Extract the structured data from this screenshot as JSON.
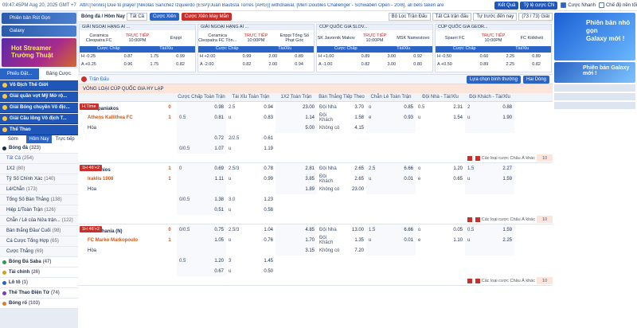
{
  "topbar": {
    "clock": "09:47:45PM Aug 20, 2025 GMT +7",
    "ticker": "Attn:[Tennis] Due to player [Nikolas Sanchez Izquierdo (ESP)/Juan Bautista Torres (ARG)] withdrawal, [Men Doubles Challenger - Schwaben Open - 20/8], all bets taken are",
    "logout": "Kết Quả",
    "odds_type": "Tỷ lệ cược CN",
    "quick_bet": "Cược Nhanh",
    "night_mode": "Chế độ nền tối"
  },
  "sidebar": {
    "banner1": "Phiên bản Rút Gọn",
    "banner2": "Galaxy",
    "promo_line1": "Hot Streamer",
    "promo_line2": "Trường Thuật",
    "tab_fav": "Phiếu Đặt...",
    "tab_bet": "Bảng Cược",
    "leagues": [
      "Vô Địch Thế Giới",
      "Giải quần vợt Mỹ Mở rộ...",
      "Giải Bóng chuyền Vô địc...",
      "Giải Cầu lông Vô địch T..."
    ],
    "sport_header": "Thể Thao",
    "sub_tabs": [
      "Sớm",
      "Hôm Nay",
      "Trực tiếp"
    ],
    "soccer": {
      "label": "Bóng đá",
      "count": "(323)"
    },
    "items": [
      {
        "label": "Tất Cả",
        "count": "(254)"
      },
      {
        "label": "1X2",
        "count": "(80)"
      },
      {
        "label": "Tỷ Số Chính Xác",
        "count": "(140)"
      },
      {
        "label": "Lẻ/Chẵn",
        "count": "(173)"
      },
      {
        "label": "Tổng Số Bàn Thắng",
        "count": "(138)"
      },
      {
        "label": "Hiệp 1/Toàn Trận",
        "count": "(126)"
      },
      {
        "label": "Chẵn / Lẻ của Nửa trận...",
        "count": "(122)"
      },
      {
        "label": "Bàn thắng Đầu/ Cuối",
        "count": "(98)"
      },
      {
        "label": "Cá Cược Tổng Hợp",
        "count": "(65)"
      },
      {
        "label": "Cược Thắng",
        "count": "(69)"
      }
    ],
    "sports": [
      {
        "label": "Bóng Đá Saba",
        "count": "(47)",
        "color": "#2a9d4a"
      },
      {
        "label": "Tài chính",
        "count": "(26)",
        "color": "#d4a017"
      },
      {
        "label": "Lô tô",
        "count": "(1)",
        "color": "#2a64c6"
      },
      {
        "label": "Thể Thao Điện Tử",
        "count": "(74)",
        "color": "#7a3ac0"
      },
      {
        "label": "Bóng rổ",
        "count": "(103)",
        "color": "#e07a1f"
      }
    ]
  },
  "filter": {
    "sport": "Bóng đá / Hôm Nay",
    "scope": "Tất Cả",
    "btn_cuoc_xien": "Cược Xiên",
    "btn_mayman": "Cược Xiên May Mắn",
    "sort": "Bộ Lọc Trận Đấu",
    "all_matches": "Tất Cả trận đấu",
    "priority": "Tự trước đến nay",
    "count": "(73 / 73) Giải"
  },
  "cards": [
    {
      "league": "GIẢI NGOẠI HẠNG AI ...",
      "home": "Ceramica Cleopatra FC",
      "status": "TRỰC TIẾP",
      "time": "10:00PM",
      "away": "Enppi",
      "h": [
        "-0.25",
        "0.87",
        "1.75",
        "0.99"
      ],
      "a": [
        "+0.25",
        "0.96",
        "1.75",
        "0.82"
      ]
    },
    {
      "league": "GIẢI NGOẠI HẠNG AI ...",
      "home": "Ceramica Cleopatra FC Tồn...",
      "status": "TRỰC TIẾP",
      "time": "10:00PM",
      "away": "Enppi Tổng Số Phạt Góc",
      "h": [
        "+2.00",
        "0.99",
        "2.00",
        "0.89"
      ],
      "a": [
        "-2.00",
        "0.82",
        "2.00",
        "0.94"
      ]
    },
    {
      "league": "CÚP QUỐC GIA SLOV...",
      "home": "SK Javornik Makov",
      "status": "TRỰC TIẾP",
      "time": "10:00PM",
      "away": "MSK Namestovo",
      "h": [
        "+1.00",
        "0.89",
        "3.00",
        "0.92"
      ],
      "a": [
        "-1.00",
        "0.82",
        "3.00",
        "0.80"
      ]
    },
    {
      "league": "CÚP QUỐC GIA GEOR...",
      "home": "Spaeri FC",
      "status": "TRỰC TIẾP",
      "time": "10:00PM",
      "away": "FC Kolkheti",
      "h": [
        "-0.50",
        "0.60",
        "2.25",
        "0.89"
      ],
      "a": [
        "+0.50",
        "0.89",
        "2.25",
        "0.82"
      ]
    }
  ],
  "card_headers": [
    "Cược Chấp",
    "Tài/Xỉu"
  ],
  "section": {
    "title": "Trận Đấu",
    "pick": "Lựa chọn bình thường",
    "odds": "Hai Dòng",
    "league": "VÒNG LOẠI CÚP QUỐC GIA HY LẠP",
    "more": "Các loại cược Châu Á khác"
  },
  "columns": [
    "Cược Chấp Toàn Trận",
    "Tài Xỉu Toàn Trận",
    "1X2 Toàn Trận",
    "Bàn Thắng Tiếp Theo",
    "Chẵn Lẻ Toàn Trận",
    "Đội Nhà - Tài/Xỉu",
    "Đội Khách - Tài/Xỉu"
  ],
  "matches": [
    {
      "tag": "H.Time",
      "home": "Kampaniakos",
      "away": "Athens Kallithea FC",
      "home_score": "0",
      "away_score": "1",
      "rows": [
        [
          "",
          "0.98",
          "2.5",
          "0.94",
          "23.00",
          "Đội Nhà",
          "3.70",
          "o",
          "0.85",
          "0.5",
          "2.31",
          "2",
          "0.88"
        ],
        [
          "0.5",
          "0.81",
          "u",
          "0.83",
          "1.14",
          "Đội Khách",
          "1.58",
          "e",
          "0.93",
          "u",
          "1.54",
          "u",
          "1.90"
        ],
        [
          "Hòa",
          "",
          "",
          "",
          "5.00",
          "Không có",
          "4.15",
          "",
          "",
          "",
          "",
          "",
          ""
        ]
      ],
      "alt": [
        [
          "",
          "0.72",
          "2/2.5",
          "0.61"
        ],
        [
          "0/0.5",
          "1.07",
          "u",
          "1.19"
        ]
      ],
      "more": "10"
    },
    {
      "tag": "1H 46'+2",
      "home": "Panionios",
      "away": "Iraklis 1908",
      "home_score": "1",
      "away_score": "1",
      "rows": [
        [
          "0",
          "0.69",
          "2.5/3",
          "0.78",
          "2.81",
          "Đội Nhà",
          "2.65",
          "2.5",
          "6.66",
          "o",
          "1.20",
          "1.5",
          "2.27"
        ],
        [
          "",
          "1.11",
          "u",
          "0.99",
          "3.85",
          "Đội Khách",
          "2.65",
          "u",
          "0.01",
          "e",
          "0.65",
          "u",
          "1.59"
        ],
        [
          "Hòa",
          "",
          "",
          "",
          "1.89",
          "Không có",
          "23.00",
          "",
          "",
          "",
          "",
          "",
          ""
        ]
      ],
      "alt": [
        [
          "0/0.5",
          "1.38",
          "3.0",
          "1.23"
        ],
        [
          "",
          "0.51",
          "u",
          "0.58"
        ]
      ],
      "more": "10"
    },
    {
      "tag": "1H 46'+2",
      "home": "PAE Chania (N)",
      "away": "FC Marko Markopoulo",
      "home_score": "0",
      "away_score": "1",
      "rows": [
        [
          "0/0.5",
          "0.75",
          "2.5/3",
          "1.04",
          "4.85",
          "Đội Nhà",
          "13.00",
          "1.5",
          "6.66",
          "o",
          "0.05",
          "0.5",
          "1.59"
        ],
        [
          "",
          "1.05",
          "u",
          "0.76",
          "1.70",
          "Đội Khách",
          "1.35",
          "u",
          "0.01",
          "e",
          "1.10",
          "u",
          "2.25"
        ],
        [
          "Hòa",
          "",
          "",
          "",
          "3.15",
          "Không có",
          "7.20",
          "",
          "",
          "",
          "",
          "",
          ""
        ]
      ],
      "alt": [
        [
          "0.5",
          "1.20",
          "3",
          "1.45"
        ],
        [
          "",
          "0.67",
          "u",
          "0.50"
        ]
      ],
      "more": "10"
    }
  ],
  "right": {
    "label1": "Phiên bản nhỏ gọn",
    "label2": "Galaxy mới !",
    "promo": "Phiên bản Galaxy mới !"
  }
}
